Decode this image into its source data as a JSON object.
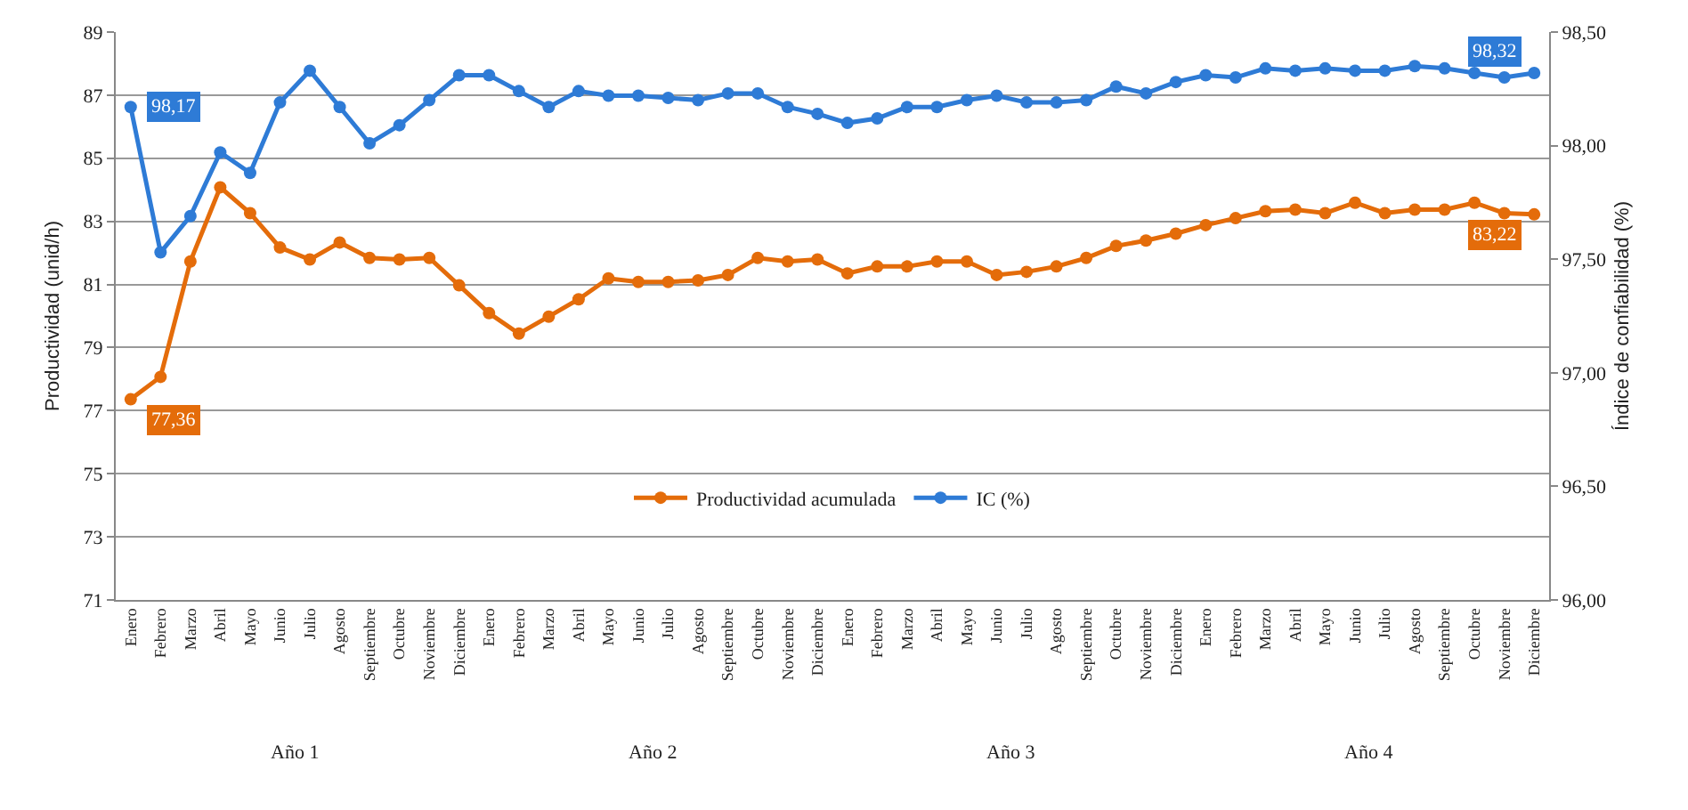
{
  "chart_data": {
    "type": "line",
    "categories": [
      "Enero",
      "Febrero",
      "Marzo",
      "Abril",
      "Mayo",
      "Junio",
      "Julio",
      "Agosto",
      "Septiembre",
      "Octubre",
      "Noviembre",
      "Diciembre",
      "Enero",
      "Febrero",
      "Marzo",
      "Abril",
      "Mayo",
      "Junio",
      "Julio",
      "Agosto",
      "Septiembre",
      "Octubre",
      "Noviembre",
      "Diciembre",
      "Enero",
      "Febrero",
      "Marzo",
      "Abril",
      "Mayo",
      "Junio",
      "Julio",
      "Agosto",
      "Septiembre",
      "Octubre",
      "Noviembre",
      "Diciembre",
      "Enero",
      "Febrero",
      "Marzo",
      "Abril",
      "Mayo",
      "Junio",
      "Julio",
      "Agosto",
      "Septiembre",
      "Octubre",
      "Noviembre",
      "Diciembre"
    ],
    "series": [
      {
        "name": "Productividad acumulada",
        "color": "#e46c0a",
        "values": [
          77.36,
          78.07,
          81.73,
          84.08,
          83.26,
          82.17,
          81.79,
          82.33,
          81.84,
          81.79,
          81.84,
          80.97,
          80.09,
          79.44,
          79.98,
          80.53,
          81.19,
          81.08,
          81.08,
          81.13,
          81.3,
          81.84,
          81.73,
          81.79,
          81.35,
          81.57,
          81.57,
          81.73,
          81.73,
          81.3,
          81.4,
          81.57,
          81.84,
          82.22,
          82.39,
          82.61,
          82.88,
          83.1,
          83.32,
          83.37,
          83.26,
          83.59,
          83.26,
          83.37,
          83.37,
          83.59,
          83.26,
          83.22
        ],
        "value_labels": [
          "77,36",
          null,
          null,
          null,
          null,
          null,
          null,
          null,
          null,
          null,
          null,
          null,
          null,
          null,
          null,
          null,
          null,
          null,
          null,
          null,
          null,
          null,
          null,
          null,
          null,
          null,
          null,
          null,
          null,
          null,
          null,
          null,
          null,
          null,
          null,
          null,
          null,
          null,
          null,
          null,
          null,
          null,
          null,
          null,
          null,
          null,
          null,
          "83,22"
        ]
      },
      {
        "name": "IC (%)",
        "color": "#2e7bd6",
        "axis": "y2",
        "values": [
          98.17,
          97.53,
          97.69,
          97.97,
          97.88,
          98.19,
          98.33,
          98.17,
          98.01,
          98.09,
          98.2,
          98.31,
          98.31,
          98.24,
          98.17,
          98.24,
          98.22,
          98.22,
          98.21,
          98.2,
          98.23,
          98.23,
          98.17,
          98.14,
          98.1,
          98.12,
          98.17,
          98.17,
          98.2,
          98.22,
          98.19,
          98.19,
          98.2,
          98.26,
          98.23,
          98.28,
          98.31,
          98.3,
          98.34,
          98.33,
          98.34,
          98.33,
          98.33,
          98.35,
          98.34,
          98.32,
          98.3,
          98.32
        ],
        "value_labels": [
          "98,17",
          null,
          null,
          null,
          null,
          null,
          null,
          null,
          null,
          null,
          null,
          null,
          null,
          null,
          null,
          null,
          null,
          null,
          null,
          null,
          null,
          null,
          null,
          null,
          null,
          null,
          null,
          null,
          null,
          null,
          null,
          null,
          null,
          null,
          null,
          null,
          null,
          null,
          null,
          null,
          null,
          null,
          null,
          null,
          null,
          null,
          null,
          "98,32"
        ]
      }
    ],
    "ylabel": "Productividad (unid/h)",
    "y2label": "Índice de confiabilidad (%)",
    "ylim": [
      71,
      89
    ],
    "yticks": [
      71,
      73,
      75,
      77,
      79,
      81,
      83,
      85,
      87,
      89
    ],
    "y2lim": [
      96,
      98.5
    ],
    "y2ticks": [
      {
        "value": 96,
        "label": "96,00"
      },
      {
        "value": 96.5,
        "label": "96,50"
      },
      {
        "value": 97,
        "label": "97,00"
      },
      {
        "value": 97.5,
        "label": "97,50"
      },
      {
        "value": 98,
        "label": "98,00"
      },
      {
        "value": 98.5,
        "label": "98,50"
      }
    ],
    "annotations": [
      "Año 1",
      "Año 2",
      "Año 3",
      "Año 4"
    ],
    "grid": "y",
    "legend": "bottom",
    "marker": "circle",
    "line_style": "solid"
  }
}
